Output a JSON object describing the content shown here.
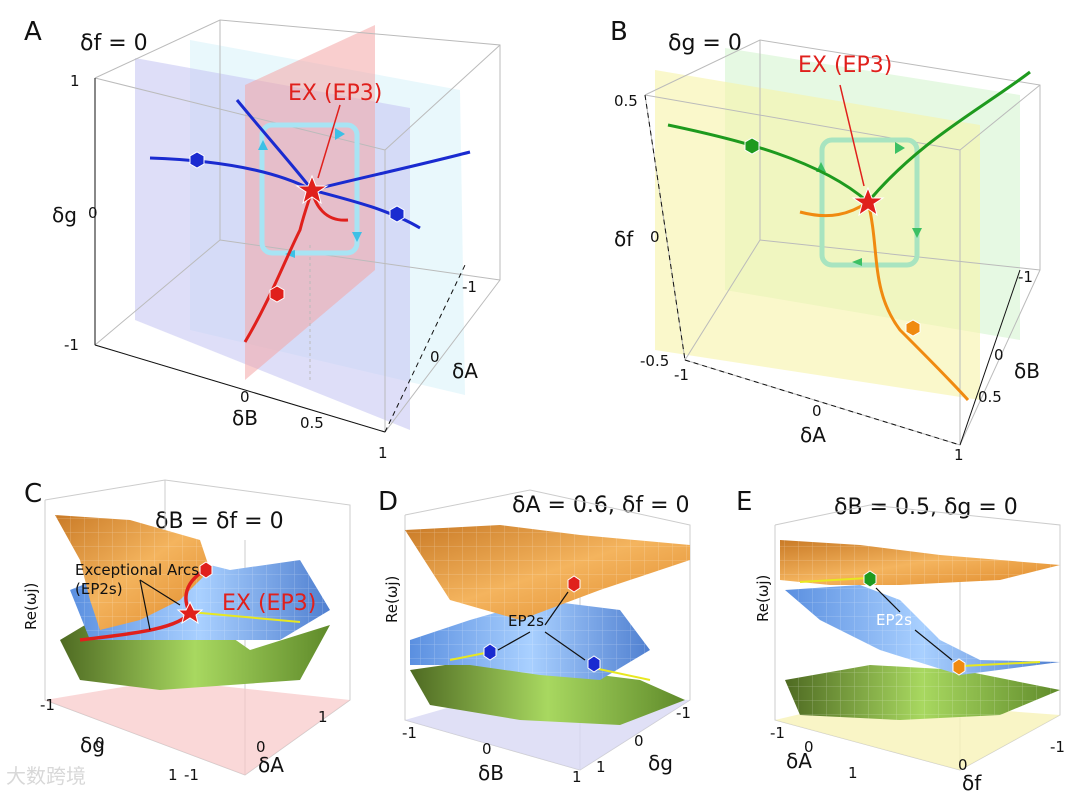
{
  "panels": {
    "A": {
      "label": "A",
      "condition": "δf = 0",
      "ex_label": "EX (EP3)",
      "ticks_g": [
        "1",
        "0",
        "-1"
      ],
      "ticks_B": [
        "0",
        "0.5",
        "1"
      ],
      "ticks_A": [
        "-1",
        "0"
      ],
      "axis_g": "δg",
      "axis_B": "δB",
      "axis_A": "δA"
    },
    "B": {
      "label": "B",
      "condition": "δg = 0",
      "ex_label": "EX (EP3)",
      "ticks_f": [
        "0.5",
        "0",
        "-0.5"
      ],
      "ticks_A": [
        "-1",
        "0",
        "1"
      ],
      "ticks_B": [
        "-1",
        "0",
        "0.5"
      ],
      "axis_f": "δf",
      "axis_A": "δA",
      "axis_B": "δB"
    },
    "C": {
      "label": "C",
      "condition": "δB = δf = 0",
      "zlabel": "Re(ωj)",
      "arcs_label_1": "Exceptional Arcs",
      "arcs_label_2": "(EP2s)",
      "ex_label": "EX (EP3)",
      "ticks_g": [
        "-1",
        "0",
        "1"
      ],
      "ticks_A": [
        "-1",
        "0",
        "1"
      ],
      "axis_g": "δg",
      "axis_A": "δA"
    },
    "D": {
      "label": "D",
      "condition": "δA = 0.6, δf = 0",
      "zlabel": "Re(ωj)",
      "ep2_label": "EP2s",
      "ticks_B": [
        "-1",
        "0",
        "1"
      ],
      "ticks_g": [
        "-1",
        "0",
        "1"
      ],
      "axis_B": "δB",
      "axis_g": "δg"
    },
    "E": {
      "label": "E",
      "condition": "δB = 0.5, δg = 0",
      "zlabel": "Re(ωj)",
      "ep2_label": "EP2s",
      "ticks_A": [
        "-1",
        "0",
        "1"
      ],
      "ticks_f": [
        "0",
        "-1"
      ],
      "axis_A": "δA",
      "axis_f": "δf"
    }
  },
  "watermark": "大数跨境",
  "colors": {
    "blue_curve": "#1a2bd0",
    "red_curve": "#e0201c",
    "green_curve": "#1e9a1e",
    "orange_curve": "#f08a10",
    "orange_surface": "#f2a54a",
    "blue_surface": "#7fb0f0",
    "green_surface": "#8cc63f"
  }
}
